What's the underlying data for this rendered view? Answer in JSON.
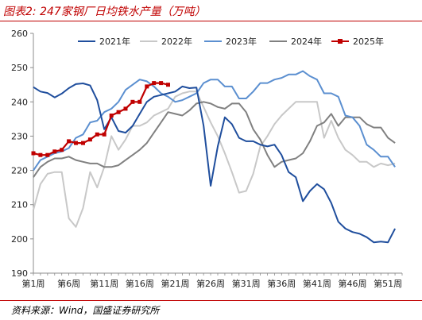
{
  "figure": {
    "title": "图表2:  247家钢厂日均铁水产量（万吨）",
    "source": "资料来源：Wind，国盛证券研究所"
  },
  "colors": {
    "title_red": "#c00000",
    "2021": "#1f4e9d",
    "2022": "#c8c8c8",
    "2023": "#5b8fd0",
    "2024": "#808080",
    "2025": "#c00000"
  },
  "chart_data": {
    "type": "line",
    "title": "",
    "xlabel": "",
    "ylabel": "",
    "ylim": [
      190,
      260
    ],
    "yticks": [
      190,
      200,
      210,
      220,
      230,
      240,
      250,
      260
    ],
    "xlim": [
      1,
      53
    ],
    "x_tick_weeks": [
      1,
      6,
      11,
      16,
      21,
      26,
      31,
      36,
      41,
      46,
      51
    ],
    "x_tick_labels": [
      "第1周",
      "第6周",
      "第11周",
      "第16周",
      "第21周",
      "第26周",
      "第31周",
      "第36周",
      "第41周",
      "第46周",
      "第51周"
    ],
    "grid": false,
    "legend_position": "top",
    "series": [
      {
        "name": "2021年",
        "color": "#1f4e9d",
        "marker": false,
        "x": [
          1,
          2,
          3,
          4,
          5,
          6,
          7,
          8,
          9,
          10,
          11,
          12,
          13,
          14,
          15,
          16,
          17,
          18,
          19,
          20,
          21,
          22,
          23,
          24,
          25,
          26,
          27,
          28,
          29,
          30,
          31,
          32,
          33,
          34,
          35,
          36,
          37,
          38,
          39,
          40,
          41,
          42,
          43,
          44,
          45,
          46,
          47,
          48,
          49,
          50,
          51,
          52
        ],
        "values": [
          244.3,
          243.0,
          242.6,
          241.3,
          242.4,
          244.0,
          245.2,
          245.4,
          244.8,
          240.5,
          232.0,
          235.5,
          231.5,
          231.0,
          233.0,
          236.5,
          240.0,
          241.5,
          242.0,
          242.5,
          243.0,
          244.5,
          244.0,
          244.2,
          233.0,
          215.5,
          227.0,
          235.5,
          233.5,
          229.5,
          228.5,
          228.5,
          227.5,
          227.0,
          227.5,
          224.5,
          219.5,
          218.0,
          211.0,
          214.0,
          216.0,
          214.5,
          210.5,
          205.0,
          203.0,
          202.0,
          201.5,
          200.5,
          199.0,
          199.2,
          199.0,
          203.0
        ]
      },
      {
        "name": "2022年",
        "color": "#c8c8c8",
        "marker": false,
        "x": [
          1,
          2,
          3,
          4,
          5,
          6,
          7,
          8,
          9,
          10,
          11,
          12,
          13,
          14,
          15,
          16,
          17,
          18,
          19,
          20,
          21,
          22,
          23,
          24,
          25,
          26,
          27,
          28,
          29,
          30,
          31,
          32,
          33,
          34,
          35,
          36,
          37,
          38,
          39,
          40,
          41,
          42,
          43,
          44,
          45,
          46,
          47,
          48,
          49,
          50,
          51,
          52
        ],
        "values": [
          208.5,
          216.0,
          219.0,
          219.5,
          219.5,
          206.0,
          203.5,
          209.0,
          219.5,
          215.0,
          221.0,
          230.0,
          226.0,
          229.0,
          233.0,
          233.0,
          234.0,
          236.0,
          237.0,
          238.0,
          241.5,
          242.5,
          243.0,
          243.0,
          238.5,
          234.0,
          230.0,
          225.0,
          219.5,
          213.5,
          214.0,
          219.0,
          227.0,
          230.0,
          233.5,
          236.0,
          238.0,
          240.0,
          240.0,
          240.0,
          240.0,
          229.5,
          234.5,
          229.5,
          226.0,
          224.5,
          222.5,
          222.5,
          221.0,
          222.0,
          221.5,
          222.0
        ]
      },
      {
        "name": "2023年",
        "color": "#5b8fd0",
        "marker": false,
        "x": [
          1,
          2,
          3,
          4,
          5,
          6,
          7,
          8,
          9,
          10,
          11,
          12,
          13,
          14,
          15,
          16,
          17,
          18,
          19,
          20,
          21,
          22,
          23,
          24,
          25,
          26,
          27,
          28,
          29,
          30,
          31,
          32,
          33,
          34,
          35,
          36,
          37,
          38,
          39,
          40,
          41,
          42,
          43,
          44,
          45,
          46,
          47,
          48,
          49,
          50,
          51,
          52
        ],
        "values": [
          220.0,
          223.0,
          224.0,
          225.0,
          225.5,
          226.5,
          229.5,
          230.5,
          234.0,
          234.5,
          237.0,
          238.0,
          240.0,
          243.5,
          245.0,
          246.5,
          246.0,
          244.5,
          242.5,
          241.5,
          240.0,
          240.5,
          241.5,
          242.5,
          245.5,
          246.5,
          246.5,
          244.5,
          244.5,
          241.0,
          241.0,
          243.0,
          245.5,
          245.5,
          246.5,
          247.0,
          248.0,
          248.0,
          249.0,
          247.5,
          246.5,
          242.5,
          242.5,
          241.5,
          236.0,
          235.5,
          233.0,
          227.5,
          226.0,
          224.0,
          224.0,
          221.0
        ]
      },
      {
        "name": "2024年",
        "color": "#808080",
        "marker": false,
        "x": [
          1,
          2,
          3,
          4,
          5,
          6,
          7,
          8,
          9,
          10,
          11,
          12,
          13,
          14,
          15,
          16,
          17,
          18,
          19,
          20,
          21,
          22,
          23,
          24,
          25,
          26,
          27,
          28,
          29,
          30,
          31,
          32,
          33,
          34,
          35,
          36,
          37,
          38,
          39,
          40,
          41,
          42,
          43,
          44,
          45,
          46,
          47,
          48,
          49,
          50,
          51,
          52
        ],
        "values": [
          218.0,
          221.0,
          222.5,
          223.5,
          223.5,
          224.0,
          223.0,
          222.5,
          222.0,
          222.0,
          221.0,
          221.0,
          221.5,
          223.0,
          224.5,
          226.0,
          228.0,
          231.0,
          234.0,
          237.0,
          236.5,
          236.0,
          237.5,
          239.5,
          240.0,
          239.5,
          238.5,
          238.0,
          239.5,
          239.5,
          237.0,
          232.0,
          229.0,
          224.5,
          221.0,
          222.5,
          223.0,
          223.5,
          225.0,
          228.5,
          233.0,
          234.0,
          236.5,
          233.0,
          235.5,
          235.5,
          235.5,
          233.5,
          232.5,
          232.5,
          229.5,
          228.0
        ]
      },
      {
        "name": "2025年",
        "color": "#c00000",
        "marker": true,
        "x": [
          1,
          2,
          3,
          4,
          5,
          6,
          7,
          8,
          9,
          10,
          11,
          12,
          13,
          14,
          15,
          16,
          17,
          18,
          19,
          20
        ],
        "values": [
          225.0,
          224.5,
          224.5,
          225.5,
          226.0,
          228.5,
          228.0,
          228.0,
          229.0,
          230.5,
          230.5,
          236.0,
          237.0,
          238.0,
          240.0,
          240.0,
          244.5,
          245.5,
          245.5,
          245.0
        ]
      }
    ]
  }
}
